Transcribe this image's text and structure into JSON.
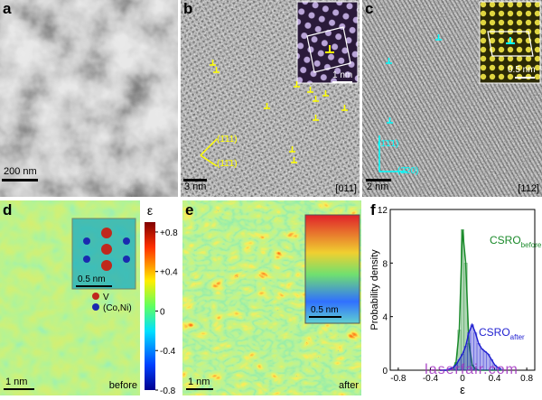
{
  "panels": {
    "a": {
      "label": "a",
      "scale": "200 nm"
    },
    "b": {
      "label": "b",
      "scale": "3 nm",
      "zone": "[011]",
      "inset_scale": "1 nm",
      "planes": [
        "(1̄11)",
        "(11̄1)"
      ]
    },
    "c": {
      "label": "c",
      "scale": "2 nm",
      "zone": "[112]",
      "inset_scale": "0.5 nm",
      "planes": [
        "(1̄1̄1)",
        "(2̄20)"
      ]
    },
    "d": {
      "label": "d",
      "scale": "1 nm",
      "state": "before",
      "inset_scale": "0.5 nm",
      "legend": [
        "V",
        "(Co,Ni)"
      ]
    },
    "e": {
      "label": "e",
      "scale": "1 nm",
      "state": "after",
      "inset_scale": "0.5 nm"
    },
    "colorbar": {
      "title": "ε",
      "lim": [
        -0.8,
        0.9
      ],
      "ticks": [
        {
          "value": 0.8,
          "label": "+0.8"
        },
        {
          "value": 0.4,
          "label": "+0.4"
        },
        0,
        -0.4,
        -0.8
      ]
    },
    "watermark": "laserfair.com"
  },
  "chart_data": {
    "type": "histogram",
    "label": "f",
    "ylabel": "Probability density",
    "xlabel": "ε",
    "bins": [
      -0.3,
      -0.26,
      -0.22,
      -0.18,
      -0.14,
      -0.1,
      -0.06,
      -0.02,
      0.02,
      0.06,
      0.1,
      0.14,
      0.18,
      0.22,
      0.26,
      0.3,
      0.34,
      0.38,
      0.42,
      0.46,
      0.5
    ],
    "series": [
      {
        "color": "#1a8a2a",
        "values": [
          0,
          0,
          0,
          0,
          0.1,
          0.6,
          3.0,
          10.5,
          8.0,
          2.0,
          0.4,
          0.1,
          0,
          0,
          0,
          0,
          0,
          0,
          0,
          0
        ]
      },
      {
        "color": "#1f1fd0",
        "values": [
          0,
          0,
          0,
          0.1,
          0.2,
          0.4,
          0.8,
          1.2,
          1.8,
          2.8,
          3.4,
          2.8,
          2.0,
          1.6,
          1.4,
          1.2,
          0.8,
          0.4,
          0.2,
          0.1
        ]
      }
    ],
    "annotations": [
      {
        "text": "CSRO",
        "sub": "before"
      },
      {
        "text": "CSRO",
        "sub": "after"
      }
    ],
    "xlim": [
      -0.9,
      0.9
    ],
    "ylim": [
      0,
      12
    ],
    "xticks": [
      -0.8,
      -0.4,
      0,
      0.4,
      0.8
    ],
    "yticks": [
      0,
      4,
      8,
      12
    ]
  }
}
